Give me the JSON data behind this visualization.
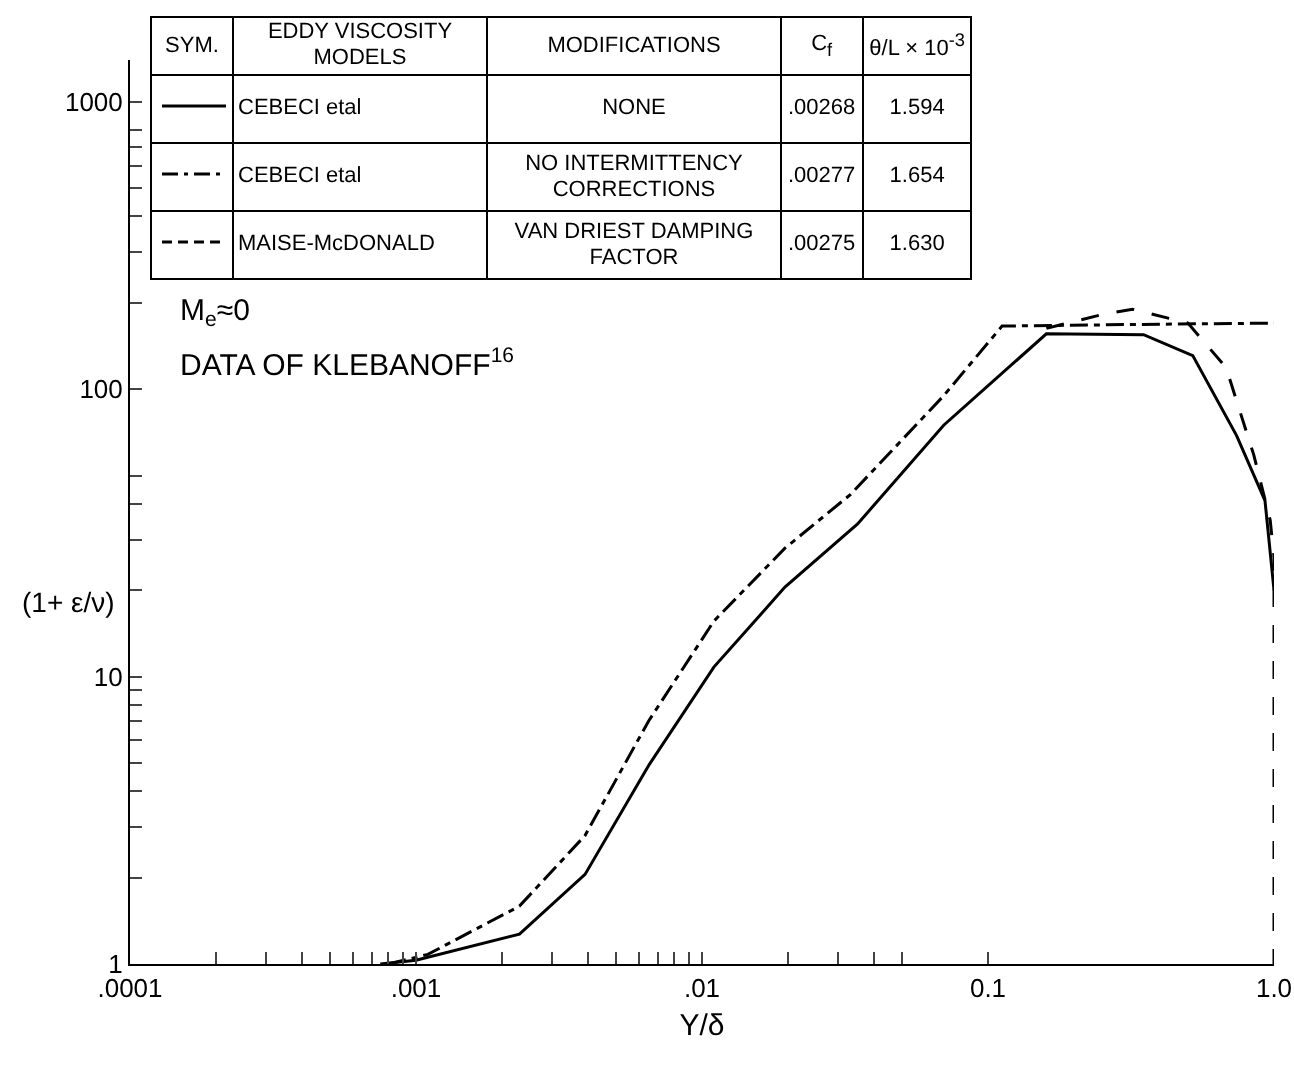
{
  "chart_data": {
    "type": "line",
    "xlabel": "Y/δ",
    "ylabel": "(1+ ε/ν)",
    "log": "xy",
    "grid": false,
    "legend": "top left",
    "xlim": [
      0.0001,
      1
    ],
    "ylim": [
      1,
      1400
    ],
    "xticks": [
      {
        "value": 0.0001,
        "label": ".0001"
      },
      {
        "value": 0.0002,
        "label": null
      },
      {
        "value": 0.0003,
        "label": null
      },
      {
        "value": 0.0004,
        "label": null
      },
      {
        "value": 0.0005,
        "label": null
      },
      {
        "value": 0.0006,
        "label": null
      },
      {
        "value": 0.0007,
        "label": null
      },
      {
        "value": 0.0008,
        "label": null
      },
      {
        "value": 0.0009,
        "label": null
      },
      {
        "value": 0.001,
        "label": ".001"
      },
      {
        "value": 0.002,
        "label": null
      },
      {
        "value": 0.003,
        "label": null
      },
      {
        "value": 0.004,
        "label": null
      },
      {
        "value": 0.005,
        "label": null
      },
      {
        "value": 0.006,
        "label": null
      },
      {
        "value": 0.007,
        "label": null
      },
      {
        "value": 0.008,
        "label": null
      },
      {
        "value": 0.009,
        "label": null
      },
      {
        "value": 0.01,
        "label": ".01"
      },
      {
        "value": 0.02,
        "label": null
      },
      {
        "value": 0.03,
        "label": null
      },
      {
        "value": 0.04,
        "label": null
      },
      {
        "value": 0.05,
        "label": null
      },
      {
        "value": 0.1,
        "label": "0.1"
      },
      {
        "value": 1,
        "label": "1.0"
      }
    ],
    "yticks": [
      1,
      {
        "value": 2,
        "label": null
      },
      {
        "value": 3,
        "label": null
      },
      {
        "value": 4,
        "label": null
      },
      {
        "value": 5,
        "label": null
      },
      {
        "value": 6,
        "label": null
      },
      {
        "value": 7,
        "label": null
      },
      {
        "value": 8,
        "label": null
      },
      {
        "value": 9,
        "label": null
      },
      10,
      {
        "value": 20,
        "label": null
      },
      {
        "value": 30,
        "label": null
      },
      {
        "value": 40,
        "label": null
      },
      {
        "value": 50,
        "label": null
      },
      100,
      {
        "value": 200,
        "label": null
      },
      {
        "value": 300,
        "label": null
      },
      {
        "value": 400,
        "label": null
      },
      {
        "value": 500,
        "label": null
      },
      {
        "value": 600,
        "label": null
      },
      {
        "value": 700,
        "label": null
      },
      {
        "value": 800,
        "label": null
      },
      1000
    ],
    "series": [
      {
        "name": "CEBECI etal",
        "color": "#000000",
        "line_style": "solid",
        "x": [
          0.00075,
          0.001,
          0.0023,
          0.0039,
          0.0065,
          0.011,
          0.0195,
          0.035,
          0.07,
          0.16,
          0.35,
          0.52,
          0.74,
          0.93,
          1.0
        ],
        "values": [
          1,
          1.03,
          1.27,
          2.05,
          4.9,
          10.8,
          20.5,
          34,
          75,
          156,
          155,
          131,
          69,
          41,
          20
        ]
      },
      {
        "name": "CEBECI etal",
        "color": "#000000",
        "line_style": "dashdot",
        "x": [
          0.0008,
          0.0011,
          0.0023,
          0.0039,
          0.0065,
          0.011,
          0.0195,
          0.033,
          0.07,
          0.112,
          0.3,
          1.0
        ],
        "values": [
          1,
          1.08,
          1.59,
          2.8,
          7.0,
          15.6,
          28,
          43,
          95,
          166,
          168,
          170
        ]
      },
      {
        "name": "MAISE-McDONALD",
        "color": "#000000",
        "line_style": "dashed",
        "x": [
          0.16,
          0.25,
          0.32,
          0.5,
          0.68,
          0.85,
          0.97,
          1.0,
          1.0
        ],
        "values": [
          163,
          182,
          190,
          170,
          119,
          59,
          35,
          26,
          1
        ]
      }
    ],
    "annotations": [
      "SYM.",
      "EDDY VISCOSITY MODELS",
      "MODIFICATIONS",
      "C$_{f}$",
      "θ/L × 10$^{-3}$",
      "NONE",
      ".00268",
      "1.594",
      "NO INTERMITTENCY CORRECTIONS",
      ".00277",
      "1.654",
      "VAN DRIEST DAMPING FACTOR",
      ".00275",
      "1.630",
      "M$_{e}$≈0",
      "DATA OF KLEBANOFF$^{16}$"
    ]
  }
}
